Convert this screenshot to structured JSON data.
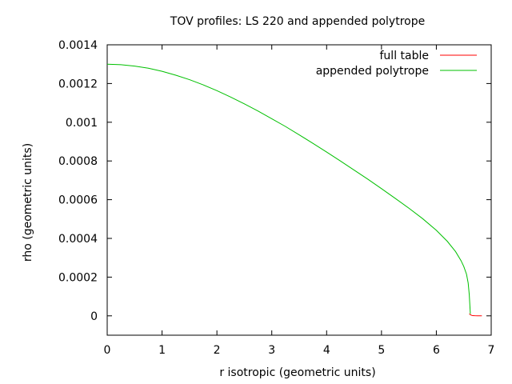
{
  "chart_data": {
    "type": "line",
    "title": "TOV profiles: LS 220 and appended polytrope",
    "xlabel": "r isotropic (geometric units)",
    "ylabel": "rho (geometric units)",
    "xlim": [
      0,
      7
    ],
    "ylim": [
      -0.0001,
      0.0014
    ],
    "xticks": [
      "0",
      "1",
      "2",
      "3",
      "4",
      "5",
      "6",
      "7"
    ],
    "yticks": [
      "0",
      "0.0002",
      "0.0004",
      "0.0006",
      "0.0008",
      "0.001",
      "0.0012",
      "0.0014"
    ],
    "grid": false,
    "legend_position": "top-right",
    "series": [
      {
        "name": "full table",
        "color": "#ff0000",
        "x": [
          6.6,
          6.62,
          6.64,
          6.66,
          6.7,
          6.75,
          6.8,
          6.83
        ],
        "y": [
          1e-05,
          6e-06,
          3e-06,
          1e-06,
          5e-07,
          3e-07,
          2e-07,
          1e-07
        ]
      },
      {
        "name": "appended polytrope",
        "color": "#00c000",
        "x": [
          0,
          0.25,
          0.5,
          0.75,
          1.0,
          1.25,
          1.5,
          1.75,
          2.0,
          2.25,
          2.5,
          2.75,
          3.0,
          3.25,
          3.5,
          3.75,
          4.0,
          4.25,
          4.5,
          4.75,
          5.0,
          5.25,
          5.5,
          5.75,
          6.0,
          6.2,
          6.35,
          6.45,
          6.5,
          6.55,
          6.58,
          6.6,
          6.61,
          6.62
        ],
        "y": [
          0.0013,
          0.001297,
          0.00129,
          0.001279,
          0.001263,
          0.001243,
          0.00122,
          0.001193,
          0.001163,
          0.00113,
          0.001095,
          0.001058,
          0.001018,
          0.000978,
          0.000935,
          0.000891,
          0.000846,
          0.0008,
          0.000753,
          0.000706,
          0.000657,
          0.000607,
          0.000556,
          0.000502,
          0.000442,
          0.000385,
          0.000332,
          0.000285,
          0.000255,
          0.000215,
          0.00017,
          0.00011,
          6e-05,
          1e-05
        ]
      }
    ]
  }
}
